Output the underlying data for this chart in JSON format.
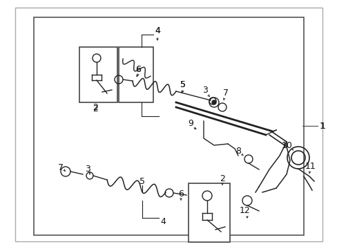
{
  "bg_color": "#ffffff",
  "line_color": "#222222",
  "label_color": "#111111",
  "outer_border": [
    0.045,
    0.03,
    0.955,
    0.97
  ],
  "inner_border": [
    0.1,
    0.07,
    0.9,
    0.945
  ],
  "label_1": [
    0.942,
    0.505
  ],
  "label_1_line": [
    [
      0.895,
      0.505
    ],
    [
      0.93,
      0.505
    ]
  ],
  "font_size": 8.5
}
